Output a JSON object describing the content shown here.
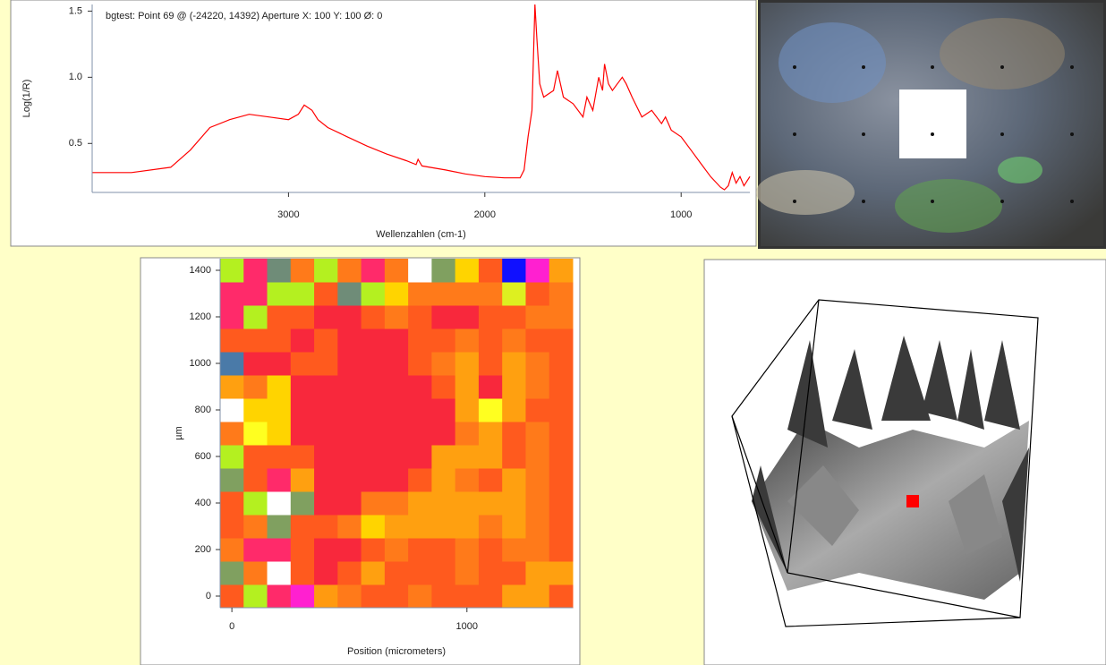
{
  "chart_data": [
    {
      "type": "line",
      "title": "bgtest: Point 69 @ (-24220, 14392) Aperture X: 100 Y: 100 Ø: 0",
      "xlabel": "Wellenzahlen (cm-1)",
      "ylabel": "Log(1/R)",
      "x": [
        4000,
        3800,
        3600,
        3500,
        3400,
        3300,
        3200,
        3100,
        3000,
        2950,
        2920,
        2880,
        2850,
        2800,
        2700,
        2600,
        2500,
        2400,
        2350,
        2340,
        2320,
        2200,
        2100,
        2000,
        1900,
        1820,
        1800,
        1780,
        1760,
        1745,
        1735,
        1720,
        1700,
        1650,
        1630,
        1600,
        1550,
        1500,
        1480,
        1450,
        1420,
        1400,
        1390,
        1370,
        1350,
        1300,
        1280,
        1250,
        1200,
        1150,
        1100,
        1080,
        1050,
        1000,
        950,
        900,
        850,
        800,
        780,
        760,
        740,
        720,
        700,
        680,
        650
      ],
      "values": [
        0.28,
        0.28,
        0.32,
        0.45,
        0.62,
        0.68,
        0.72,
        0.7,
        0.68,
        0.72,
        0.79,
        0.75,
        0.68,
        0.62,
        0.55,
        0.48,
        0.42,
        0.37,
        0.34,
        0.38,
        0.33,
        0.3,
        0.27,
        0.25,
        0.24,
        0.24,
        0.3,
        0.55,
        0.75,
        1.55,
        1.3,
        0.95,
        0.85,
        0.9,
        1.05,
        0.85,
        0.8,
        0.7,
        0.85,
        0.75,
        1.0,
        0.9,
        1.1,
        0.95,
        0.9,
        1.0,
        0.95,
        0.85,
        0.7,
        0.75,
        0.65,
        0.7,
        0.6,
        0.55,
        0.45,
        0.35,
        0.25,
        0.17,
        0.15,
        0.18,
        0.28,
        0.2,
        0.25,
        0.18,
        0.25
      ],
      "color": "#ff0000",
      "xlim": [
        4000,
        650
      ],
      "ylim": [
        0.13,
        1.55
      ],
      "xticks": [
        3000,
        2000,
        1000
      ],
      "yticks": [
        0.5,
        {
          "value": 1,
          "label": "1.0"
        },
        1.5
      ]
    },
    {
      "type": "heatmap",
      "xlabel": "Position (micrometers)",
      "ylabel": "µm",
      "x": [
        0,
        100,
        200,
        300,
        400,
        500,
        600,
        700,
        800,
        900,
        1000,
        1100,
        1200,
        1300,
        1400
      ],
      "y": [
        0,
        100,
        200,
        300,
        400,
        500,
        600,
        700,
        800,
        900,
        1000,
        1100,
        1200,
        1300,
        1400
      ],
      "colors": [
        [
          "#ff5a1e",
          "#b4f020",
          "#ff2a6a",
          "#ff20d0",
          "#ff9a10",
          "#ff7a1a",
          "#ff5a1e",
          "#ff5a1e",
          "#ff7a1a",
          "#ff5a1e",
          "#ff5a1e",
          "#ff5a1e",
          "#ffa010",
          "#ffa010",
          "#ff5a1e"
        ],
        [
          "#80a060",
          "#ff7a1a",
          "#ffffff",
          "#ff5a1e",
          "#f8283c",
          "#ff5a1e",
          "#ffa010",
          "#ff5a1e",
          "#ff5a1e",
          "#ff5a1e",
          "#ff7a1a",
          "#ff5a1e",
          "#ff5a1e",
          "#ffa010",
          "#ffa010"
        ],
        [
          "#ff7a1a",
          "#ff2a6a",
          "#ff2a6a",
          "#ff5a1e",
          "#f8283c",
          "#f8283c",
          "#ff5a1e",
          "#ff7a1a",
          "#ff5a1e",
          "#ff5a1e",
          "#ff7a1a",
          "#ff5a1e",
          "#ff7a1a",
          "#ff7a1a",
          "#ff5a1e"
        ],
        [
          "#ff5a1e",
          "#ff7a1a",
          "#80a060",
          "#ff5a1e",
          "#ff5a1e",
          "#ff7a1a",
          "#ffd400",
          "#ffa010",
          "#ffa010",
          "#ffa010",
          "#ffa010",
          "#ff7a1a",
          "#ffa010",
          "#ff7a1a",
          "#ff5a1e"
        ],
        [
          "#ff5a1e",
          "#b4f020",
          "#ffffff",
          "#80a060",
          "#f8283c",
          "#f8283c",
          "#ff7a1a",
          "#ff7a1a",
          "#ffa010",
          "#ffa010",
          "#ffa010",
          "#ffa010",
          "#ffa010",
          "#ff7a1a",
          "#ff5a1e"
        ],
        [
          "#80a060",
          "#ff5a1e",
          "#ff2a6a",
          "#ffa010",
          "#f8283c",
          "#f8283c",
          "#f8283c",
          "#f8283c",
          "#ff5a1e",
          "#ffa010",
          "#ff7a1a",
          "#ff5a1e",
          "#ffa010",
          "#ff7a1a",
          "#ff5a1e"
        ],
        [
          "#b4f020",
          "#ff5a1e",
          "#ff5a1e",
          "#ff5a1e",
          "#f8283c",
          "#f8283c",
          "#f8283c",
          "#f8283c",
          "#f8283c",
          "#ffa010",
          "#ffa010",
          "#ffa010",
          "#ff5a1e",
          "#ff7a1a",
          "#ff5a1e"
        ],
        [
          "#ff7a1a",
          "#ffff20",
          "#ffd400",
          "#f8283c",
          "#f8283c",
          "#f8283c",
          "#f8283c",
          "#f8283c",
          "#f8283c",
          "#f8283c",
          "#ff7a1a",
          "#ffa010",
          "#ff5a1e",
          "#ff7a1a",
          "#ff5a1e"
        ],
        [
          "#ffffff",
          "#ffd400",
          "#ffd400",
          "#f8283c",
          "#f8283c",
          "#f8283c",
          "#f8283c",
          "#f8283c",
          "#f8283c",
          "#f8283c",
          "#ffa010",
          "#ffff20",
          "#ffa010",
          "#ff5a1e",
          "#ff5a1e"
        ],
        [
          "#ffa010",
          "#ff7a1a",
          "#ffd400",
          "#f8283c",
          "#f8283c",
          "#f8283c",
          "#f8283c",
          "#f8283c",
          "#f8283c",
          "#ff5a1e",
          "#ffa010",
          "#f8283c",
          "#ffa010",
          "#ff7a1a",
          "#ff5a1e"
        ],
        [
          "#4a7aa8",
          "#f8283c",
          "#f8283c",
          "#ff5a1e",
          "#ff5a1e",
          "#f8283c",
          "#f8283c",
          "#f8283c",
          "#ff5a1e",
          "#ff7a1a",
          "#ffa010",
          "#ff5a1e",
          "#ffa010",
          "#ff7a1a",
          "#ff5a1e"
        ],
        [
          "#ff5a1e",
          "#ff5a1e",
          "#ff5a1e",
          "#f8283c",
          "#ff5a1e",
          "#f8283c",
          "#f8283c",
          "#f8283c",
          "#ff5a1e",
          "#ff5a1e",
          "#ff7a1a",
          "#ff5a1e",
          "#ff7a1a",
          "#ff5a1e",
          "#ff5a1e"
        ],
        [
          "#ff2a6a",
          "#b4f020",
          "#ff5a1e",
          "#ff5a1e",
          "#f8283c",
          "#f8283c",
          "#ff5a1e",
          "#ff7a1a",
          "#ff5a1e",
          "#f8283c",
          "#f8283c",
          "#ff5a1e",
          "#ff5a1e",
          "#ff7a1a",
          "#ff7a1a"
        ],
        [
          "#ff2a6a",
          "#ff2a6a",
          "#b4f020",
          "#b4f020",
          "#ff5a1e",
          "#6f8c78",
          "#b4f020",
          "#ffd400",
          "#ff7a1a",
          "#ff7a1a",
          "#ff7a1a",
          "#ff7a1a",
          "#ddf020",
          "#ff5a1e",
          "#ff7a1a"
        ],
        [
          "#b4f020",
          "#ff2a6a",
          "#6f8c78",
          "#ff7a1a",
          "#b4f020",
          "#ff7a1a",
          "#ff2a6a",
          "#ff7a1a",
          "#ffffff",
          "#80a060",
          "#ffd400",
          "#ff5a1e",
          "#1010ff",
          "#ff20d0",
          "#ffa010"
        ]
      ],
      "xlim": [
        -50,
        1450
      ],
      "ylim": [
        -50,
        1450
      ],
      "xticks": [
        0,
        1000
      ],
      "yticks": [
        0,
        200,
        400,
        600,
        800,
        1000,
        1200,
        1400
      ]
    }
  ]
}
